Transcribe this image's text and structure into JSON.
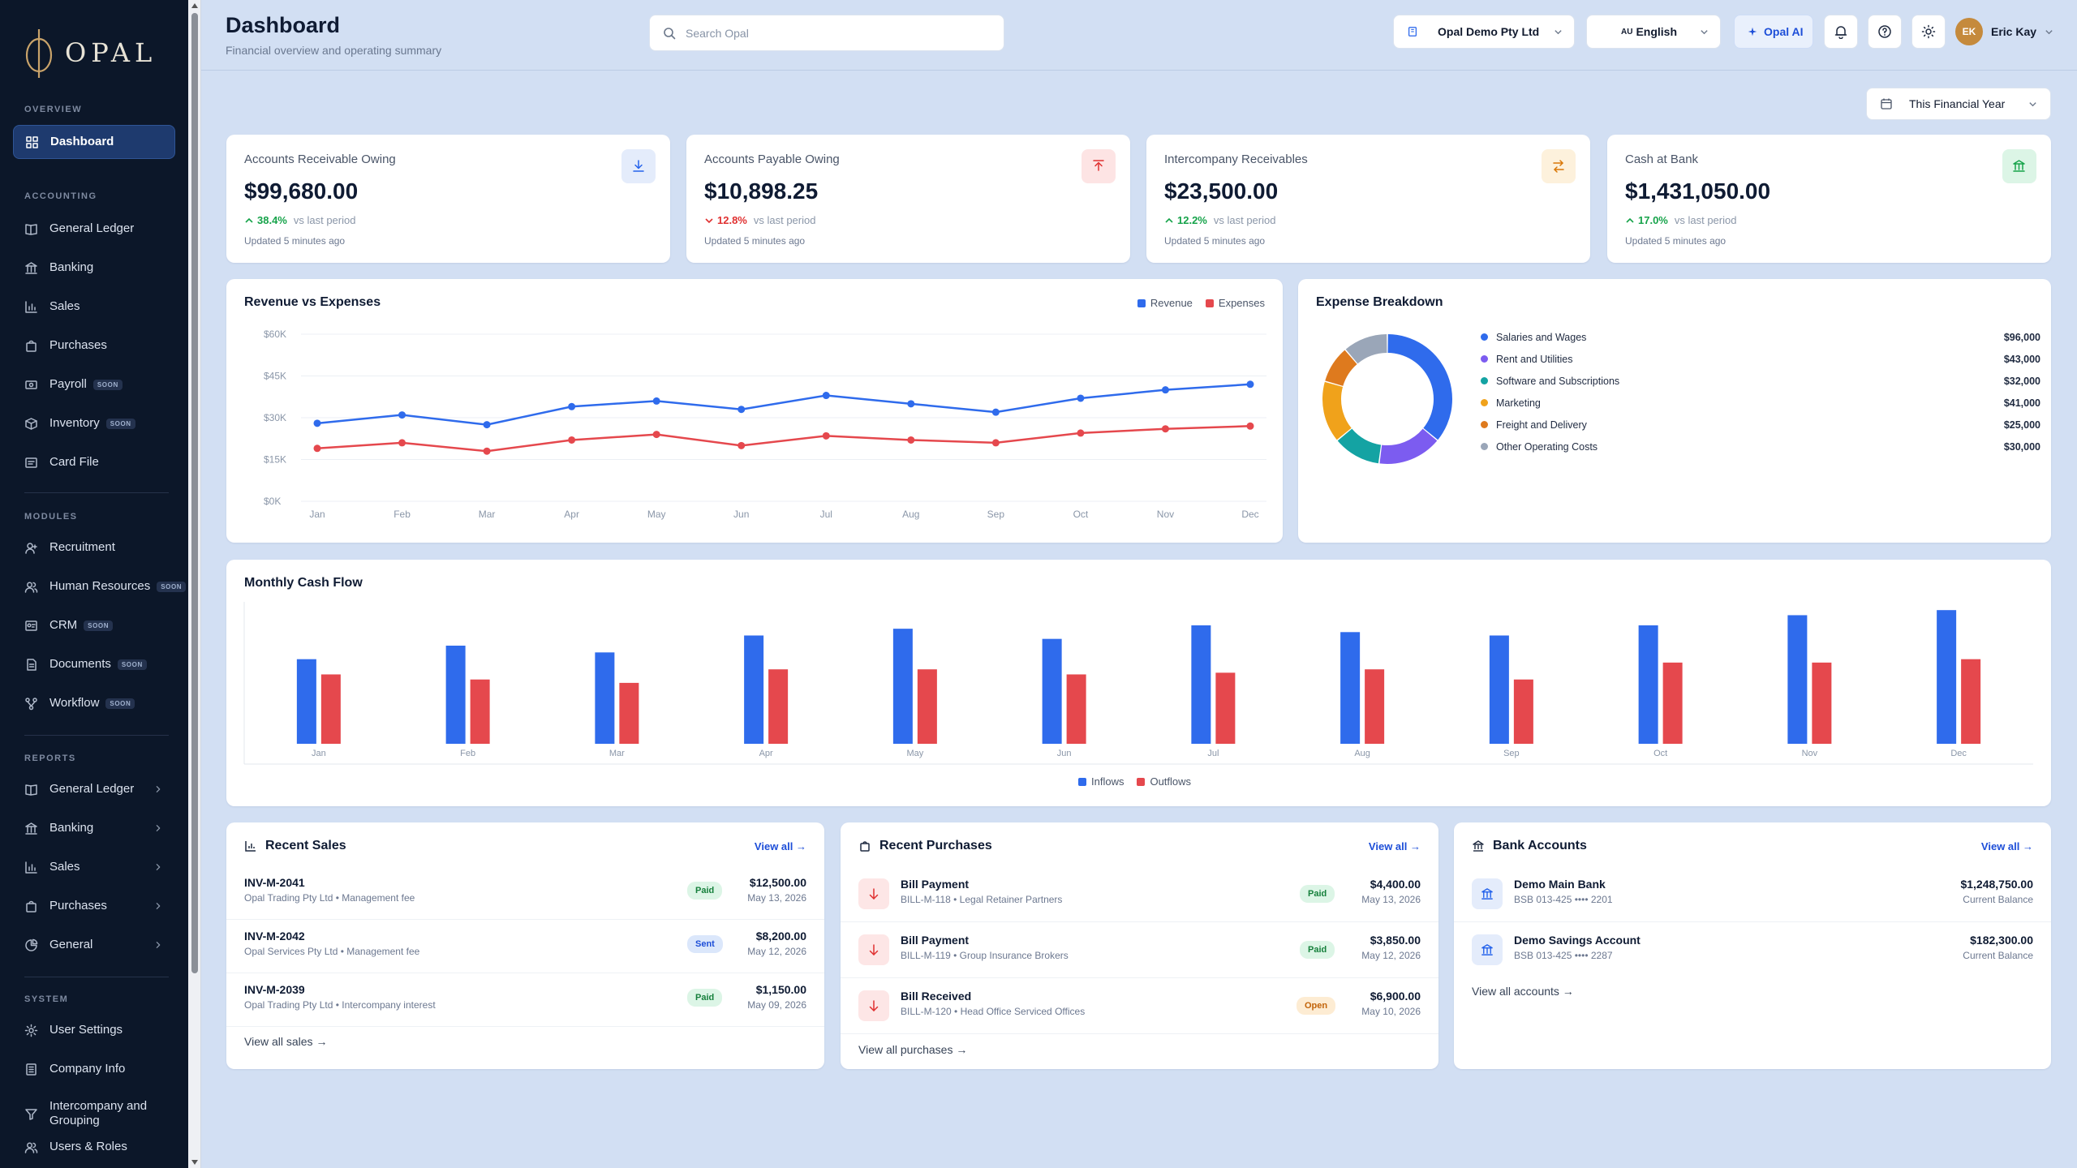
{
  "brand": {
    "name": "OPAL"
  },
  "sidebar": {
    "sections": {
      "overview": "OVERVIEW",
      "accounting": "ACCOUNTING",
      "modules": "MODULES",
      "reports": "REPORTS",
      "system": "SYSTEM"
    },
    "soon_label": "SOON",
    "overview_items": [
      {
        "label": "Dashboard",
        "icon": "grid-icon"
      }
    ],
    "accounting_items": [
      {
        "label": "General Ledger",
        "icon": "book-icon"
      },
      {
        "label": "Banking",
        "icon": "bank-icon"
      },
      {
        "label": "Sales",
        "icon": "chart-icon"
      },
      {
        "label": "Purchases",
        "icon": "bag-icon"
      },
      {
        "label": "Payroll",
        "icon": "payroll-icon",
        "soon": true
      },
      {
        "label": "Inventory",
        "icon": "box-icon",
        "soon": true
      },
      {
        "label": "Card File",
        "icon": "card-icon"
      }
    ],
    "modules_items": [
      {
        "label": "Recruitment",
        "icon": "user-plus-icon"
      },
      {
        "label": "Human Resources",
        "icon": "users-icon",
        "soon": true
      },
      {
        "label": "CRM",
        "icon": "crm-icon",
        "soon": true
      },
      {
        "label": "Documents",
        "icon": "document-icon",
        "soon": true
      },
      {
        "label": "Workflow",
        "icon": "workflow-icon",
        "soon": true
      }
    ],
    "reports_items": [
      {
        "label": "General Ledger",
        "icon": "book-icon"
      },
      {
        "label": "Banking",
        "icon": "bank-icon"
      },
      {
        "label": "Sales",
        "icon": "chart-icon"
      },
      {
        "label": "Purchases",
        "icon": "bag-icon"
      },
      {
        "label": "General",
        "icon": "pie-icon"
      }
    ],
    "system_items": [
      {
        "label": "User Settings",
        "icon": "gear-icon"
      },
      {
        "label": "Company Info",
        "icon": "building-icon"
      },
      {
        "label": "Intercompany and Grouping",
        "icon": "network-icon"
      },
      {
        "label": "Users & Roles",
        "icon": "users-icon"
      }
    ]
  },
  "header": {
    "title": "Dashboard",
    "subtitle": "Financial overview and operating summary",
    "search_placeholder": "Search Opal",
    "company": "Opal Demo Pty Ltd",
    "language_code": "AU",
    "language": "English",
    "ai_label": "Opal AI",
    "user_initials": "EK",
    "user_name": "Eric Kay",
    "period": "This Financial Year"
  },
  "kpis": [
    {
      "title": "Accounts Receivable Owing",
      "value": "$99,680.00",
      "change": "38.4%",
      "direction": "up",
      "vs": "vs last period",
      "updated": "Updated 5 minutes ago",
      "icon": "download-icon",
      "color": "#2563eb",
      "bg": "#e4ecfb"
    },
    {
      "title": "Accounts Payable Owing",
      "value": "$10,898.25",
      "change": "12.8%",
      "direction": "down",
      "vs": "vs last period",
      "updated": "Updated 5 minutes ago",
      "icon": "upload-icon",
      "color": "#e03131",
      "bg": "#fde4e4"
    },
    {
      "title": "Intercompany Receivables",
      "value": "$23,500.00",
      "change": "12.2%",
      "direction": "up",
      "vs": "vs last period",
      "updated": "Updated 5 minutes ago",
      "icon": "swap-icon",
      "color": "#d97706",
      "bg": "#fdf1dc"
    },
    {
      "title": "Cash at Bank",
      "value": "$1,431,050.00",
      "change": "17.0%",
      "direction": "up",
      "vs": "vs last period",
      "updated": "Updated 5 minutes ago",
      "icon": "bank-icon",
      "color": "#16a34a",
      "bg": "#dcf5e6"
    }
  ],
  "revenue_chart": {
    "title": "Revenue vs Expenses",
    "chart_data": {
      "type": "line",
      "categories": [
        "Jan",
        "Feb",
        "Mar",
        "Apr",
        "May",
        "Jun",
        "Jul",
        "Aug",
        "Sep",
        "Oct",
        "Nov",
        "Dec"
      ],
      "series": [
        {
          "name": "Revenue",
          "color": "#2f6bec",
          "values": [
            28000,
            31000,
            27500,
            34000,
            36000,
            33000,
            38000,
            35000,
            32000,
            37000,
            40000,
            42000
          ]
        },
        {
          "name": "Expenses",
          "color": "#e5484d",
          "values": [
            19000,
            21000,
            18000,
            22000,
            24000,
            20000,
            23500,
            22000,
            21000,
            24500,
            26000,
            27000
          ]
        }
      ],
      "yticks": [
        "$0K",
        "$15K",
        "$30K",
        "$45K",
        "$60K"
      ],
      "ylim": [
        0,
        60000
      ],
      "legend": "top-right",
      "grid": true
    }
  },
  "expense_breakdown": {
    "title": "Expense Breakdown",
    "chart_data": {
      "type": "pie",
      "labels": [
        "Salaries and Wages",
        "Rent and Utilities",
        "Software and Subscriptions",
        "Marketing",
        "Freight and Delivery",
        "Other Operating Costs"
      ],
      "values": [
        96000,
        43000,
        32000,
        41000,
        25000,
        30000
      ],
      "display_values": [
        "$96,000",
        "$43,000",
        "$32,000",
        "$41,000",
        "$25,000",
        "$30,000"
      ],
      "colors": [
        "#2f6bec",
        "#7c5cf0",
        "#14a3a3",
        "#f0a21b",
        "#de7a1e",
        "#9aa6b8"
      ]
    }
  },
  "cash_flow": {
    "title": "Monthly Cash Flow",
    "chart_data": {
      "type": "bar",
      "categories": [
        "Jan",
        "Feb",
        "Mar",
        "Apr",
        "May",
        "Jun",
        "Jul",
        "Aug",
        "Sep",
        "Oct",
        "Nov",
        "Dec"
      ],
      "series": [
        {
          "name": "Inflows",
          "color": "#2f6bec",
          "values": [
            50,
            58,
            54,
            64,
            68,
            62,
            70,
            66,
            64,
            70,
            76,
            79
          ]
        },
        {
          "name": "Outflows",
          "color": "#e5484d",
          "values": [
            41,
            38,
            36,
            44,
            44,
            41,
            42,
            44,
            38,
            48,
            48,
            50
          ]
        }
      ],
      "ylim": [
        0,
        100
      ],
      "legend": "bottom"
    }
  },
  "recent_sales": {
    "title": "Recent Sales",
    "view_all": "View all →",
    "footer": "View all sales →",
    "rows": [
      {
        "id": "INV-M-2041",
        "desc": "Opal Trading Pty Ltd • Management fee",
        "status": "Paid",
        "amount": "$12,500.00",
        "date": "May 13, 2026"
      },
      {
        "id": "INV-M-2042",
        "desc": "Opal Services Pty Ltd • Management fee",
        "status": "Sent",
        "amount": "$8,200.00",
        "date": "May 12, 2026"
      },
      {
        "id": "INV-M-2039",
        "desc": "Opal Trading Pty Ltd • Intercompany interest",
        "status": "Paid",
        "amount": "$1,150.00",
        "date": "May 09, 2026"
      }
    ]
  },
  "recent_purchases": {
    "title": "Recent Purchases",
    "view_all": "View all →",
    "footer": "View all purchases →",
    "rows": [
      {
        "id": "Bill Payment",
        "desc": "BILL-M-118 • Legal Retainer Partners",
        "status": "Paid",
        "amount": "$4,400.00",
        "date": "May 13, 2026"
      },
      {
        "id": "Bill Payment",
        "desc": "BILL-M-119 • Group Insurance Brokers",
        "status": "Paid",
        "amount": "$3,850.00",
        "date": "May 12, 2026"
      },
      {
        "id": "Bill Received",
        "desc": "BILL-M-120 • Head Office Serviced Offices",
        "status": "Open",
        "amount": "$6,900.00",
        "date": "May 10, 2026"
      }
    ]
  },
  "bank_accounts": {
    "title": "Bank Accounts",
    "view_all": "View all →",
    "footer": "View all accounts →",
    "rows": [
      {
        "name": "Demo Main Bank",
        "bsb": "BSB 013-425 •••• 2201",
        "amount": "$1,248,750.00",
        "label": "Current Balance"
      },
      {
        "name": "Demo Savings Account",
        "bsb": "BSB 013-425 •••• 2287",
        "amount": "$182,300.00",
        "label": "Current Balance"
      }
    ]
  }
}
